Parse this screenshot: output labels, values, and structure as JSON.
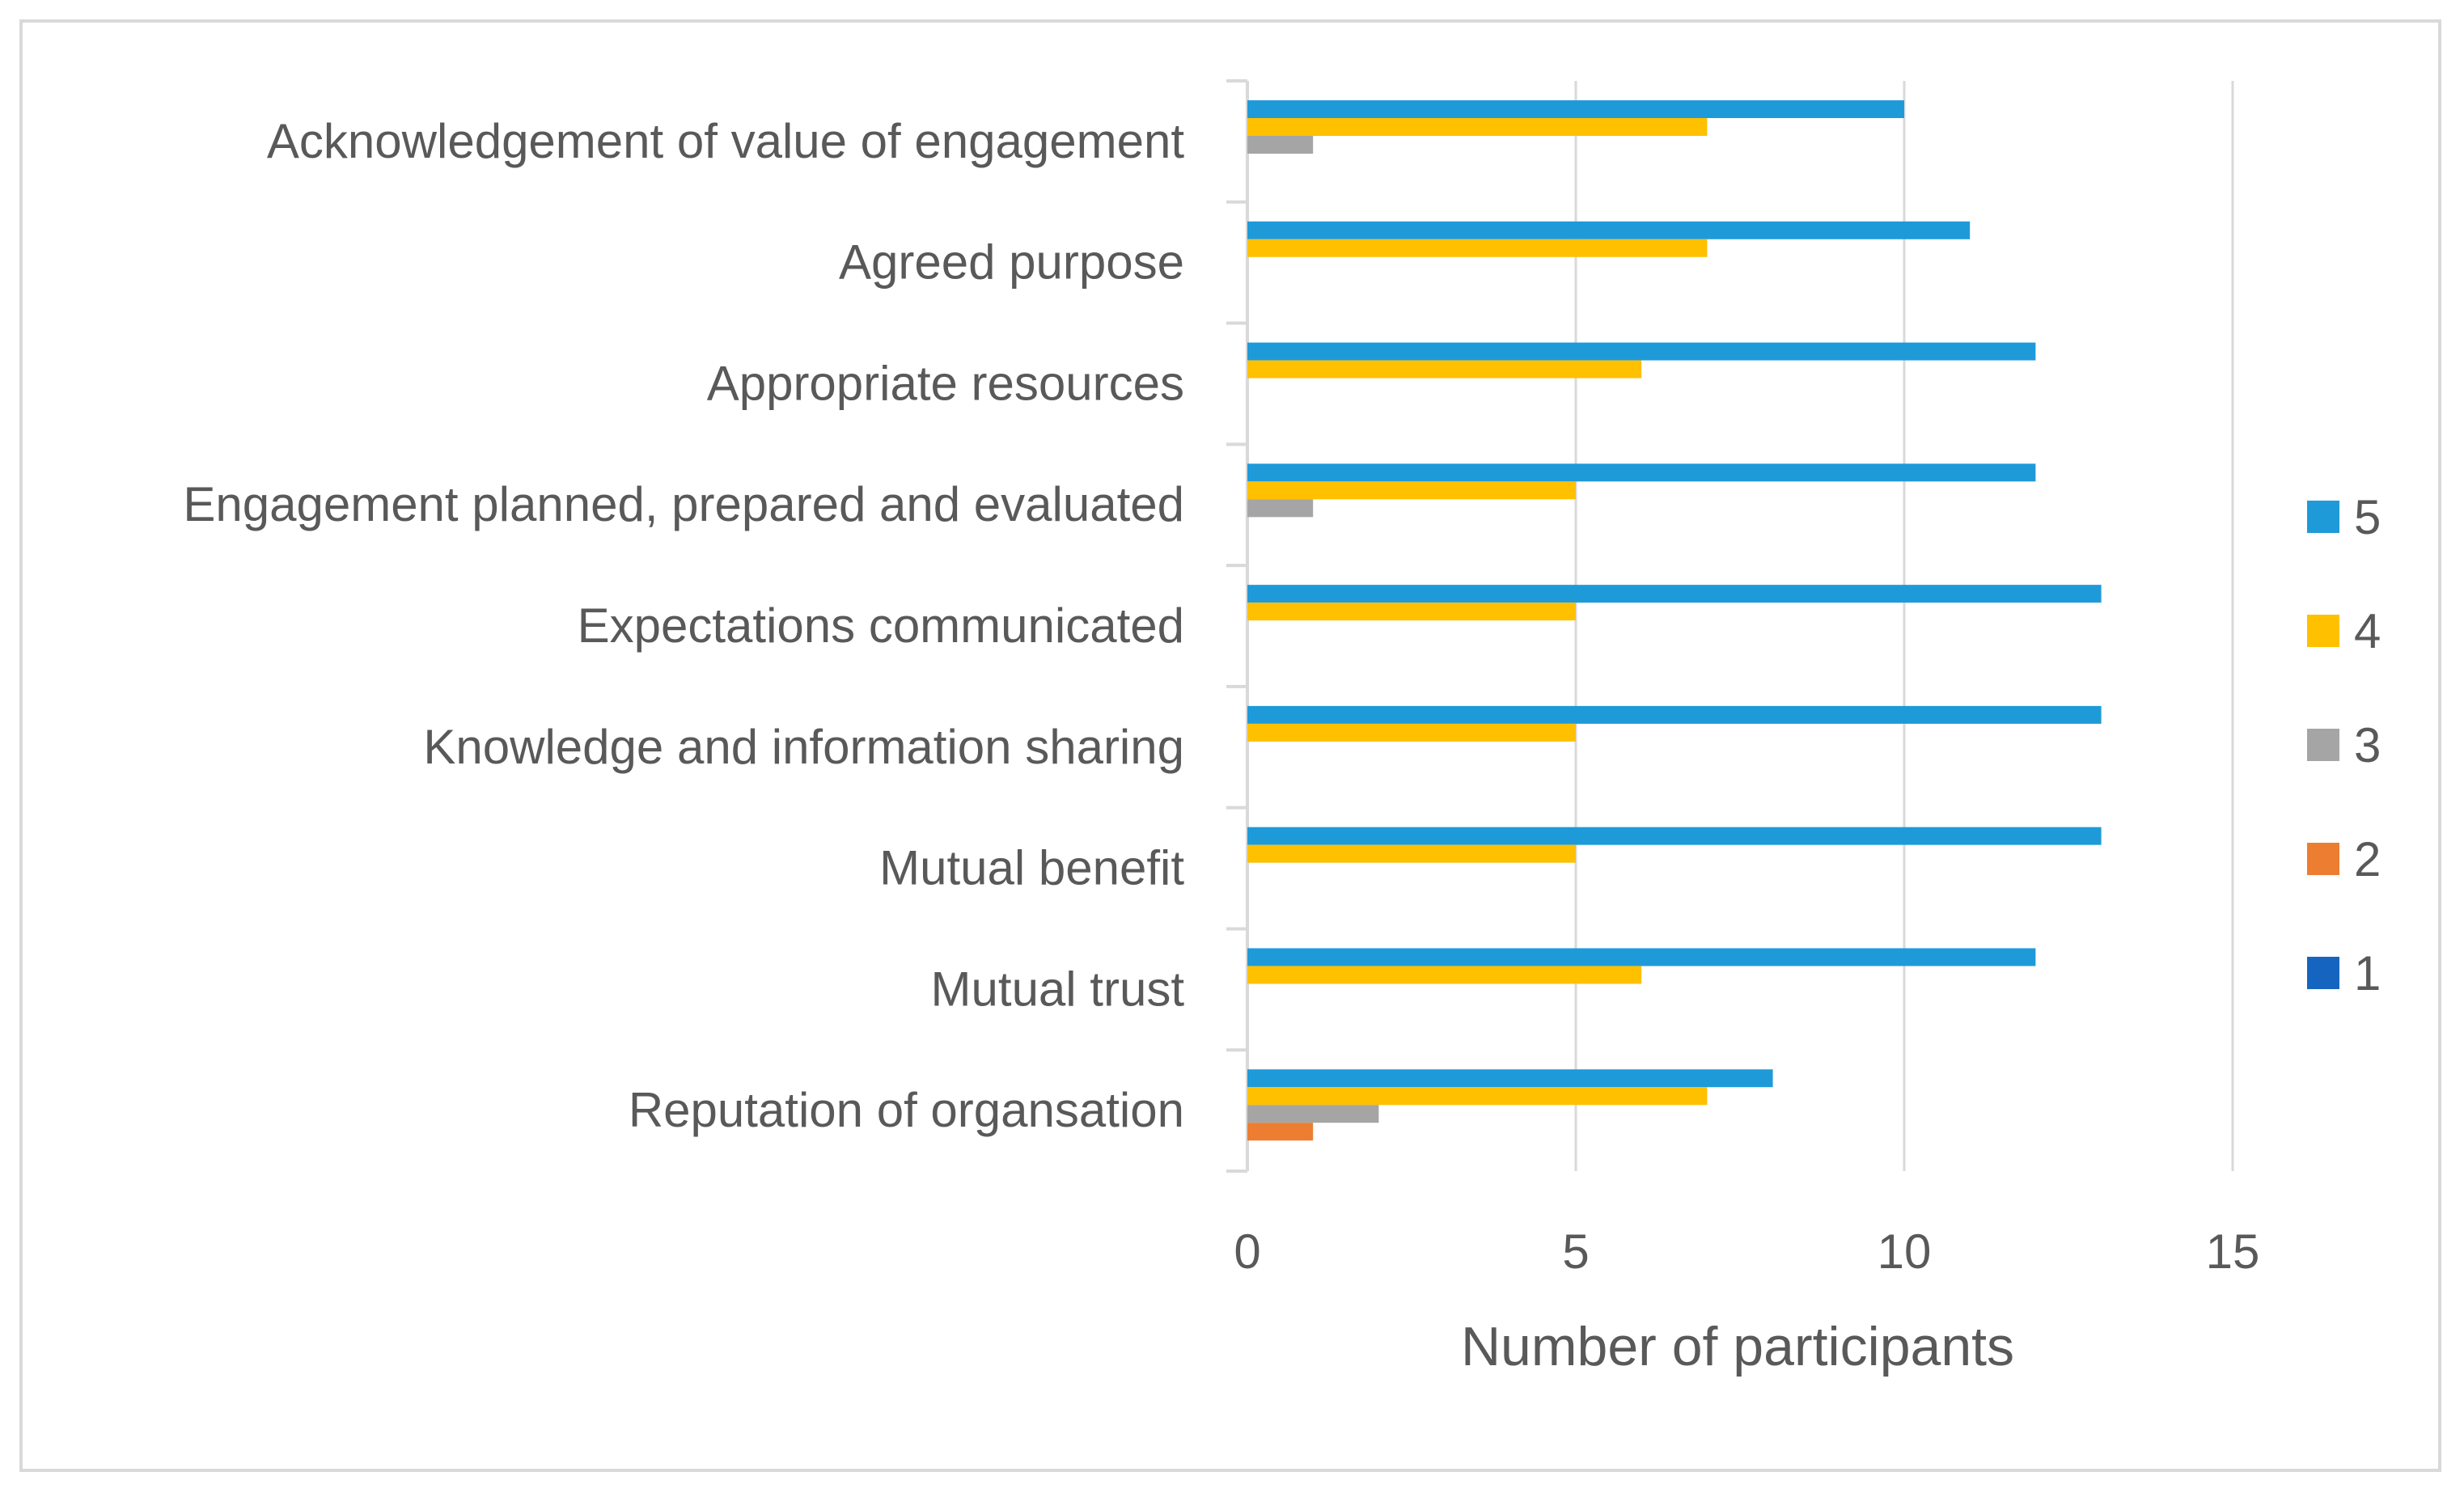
{
  "chart_data": {
    "type": "bar",
    "orientation": "horizontal",
    "title": "",
    "xlabel": "Number of participants",
    "ylabel": "",
    "xlim": [
      0,
      15
    ],
    "xticks": [
      0,
      5,
      10,
      15
    ],
    "grid": true,
    "legend_position": "right",
    "categories": [
      "Acknowledgement of value of engagement",
      "Agreed purpose",
      "Appropriate resources",
      "Engagement planned, prepared and evaluated",
      "Expectations communicated",
      "Knowledge and information sharing",
      "Mutual benefit",
      "Mutual trust",
      "Reputation of organsation"
    ],
    "series": [
      {
        "name": "5",
        "color": "#1f9ad9",
        "values": [
          10,
          11,
          12,
          12,
          13,
          13,
          13,
          12,
          8
        ]
      },
      {
        "name": "4",
        "color": "#ffc000",
        "values": [
          7,
          7,
          6,
          5,
          5,
          5,
          5,
          6,
          7
        ]
      },
      {
        "name": "3",
        "color": "#a5a5a5",
        "values": [
          1,
          0,
          0,
          1,
          0,
          0,
          0,
          0,
          2
        ]
      },
      {
        "name": "2",
        "color": "#ed7d31",
        "values": [
          0,
          0,
          0,
          0,
          0,
          0,
          0,
          0,
          1
        ]
      },
      {
        "name": "1",
        "color": "#1565c0",
        "values": [
          0,
          0,
          0,
          0,
          0,
          0,
          0,
          0,
          0
        ]
      }
    ]
  }
}
